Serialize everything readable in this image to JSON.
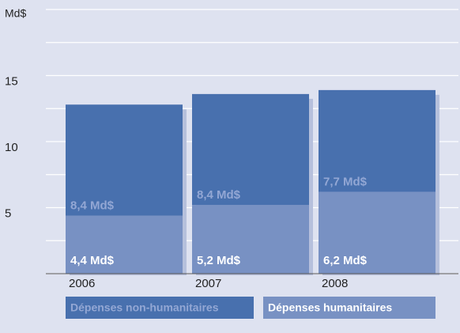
{
  "chart_data": {
    "type": "stacked_bar",
    "y_unit": "Md$",
    "categories": [
      "2006",
      "2007",
      "2008"
    ],
    "series": [
      {
        "name": "Dépenses humanitaires",
        "color": "#7891c3",
        "values": [
          4.4,
          5.2,
          6.2
        ],
        "value_labels": [
          "4,4 Md$",
          "5,2 Md$",
          "6,2 Md$"
        ]
      },
      {
        "name": "Dépenses non-humanitaires",
        "color": "#4870ae",
        "values": [
          8.4,
          8.4,
          7.7
        ],
        "value_labels": [
          "8,4 Md$",
          "8,4 Md$",
          "7,7 Md$"
        ]
      }
    ],
    "ylim": [
      0,
      20
    ],
    "yticks": [
      5,
      10,
      15
    ],
    "grid": true,
    "grid_step": 2.5
  }
}
